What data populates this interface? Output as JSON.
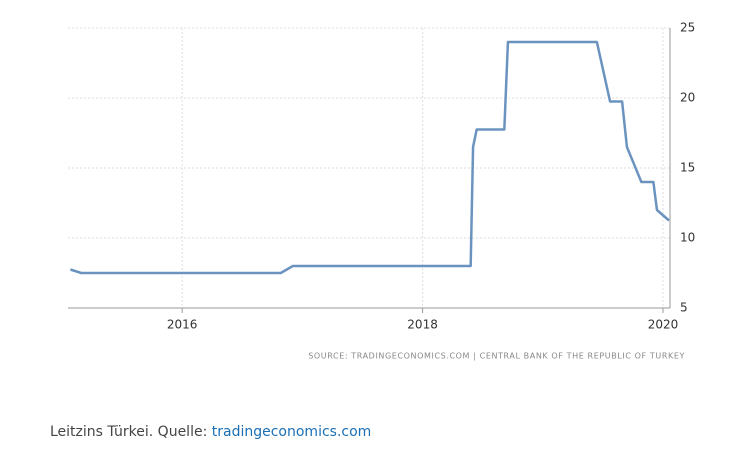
{
  "chart_data": {
    "type": "line",
    "source": "SOURCE: TRADINGECONOMICS.COM | CENTRAL BANK OF THE REPUBLIC OF TURKEY",
    "x": [
      2015.07,
      2015.16,
      2016.82,
      2016.92,
      2018.4,
      2018.42,
      2018.45,
      2018.68,
      2018.71,
      2019.45,
      2019.56,
      2019.66,
      2019.7,
      2019.82,
      2019.92,
      2019.95,
      2020.05
    ],
    "series": [
      {
        "name": "Leitzins",
        "color": "#6b93c0",
        "values": [
          7.75,
          7.5,
          7.5,
          8,
          8,
          16.5,
          17.75,
          17.75,
          24,
          24,
          19.75,
          19.75,
          16.5,
          14,
          14,
          12,
          11.25
        ]
      }
    ],
    "xlim": [
      2015.05,
      2020.1
    ],
    "xticks": [
      2016,
      2018,
      2020
    ],
    "ylim": [
      5,
      25
    ],
    "yticks": [
      5,
      10,
      15,
      20,
      25
    ],
    "grid": true
  },
  "caption": {
    "text": "Leitzins Türkei. Quelle: ",
    "link": "tradingeconomics.com"
  }
}
